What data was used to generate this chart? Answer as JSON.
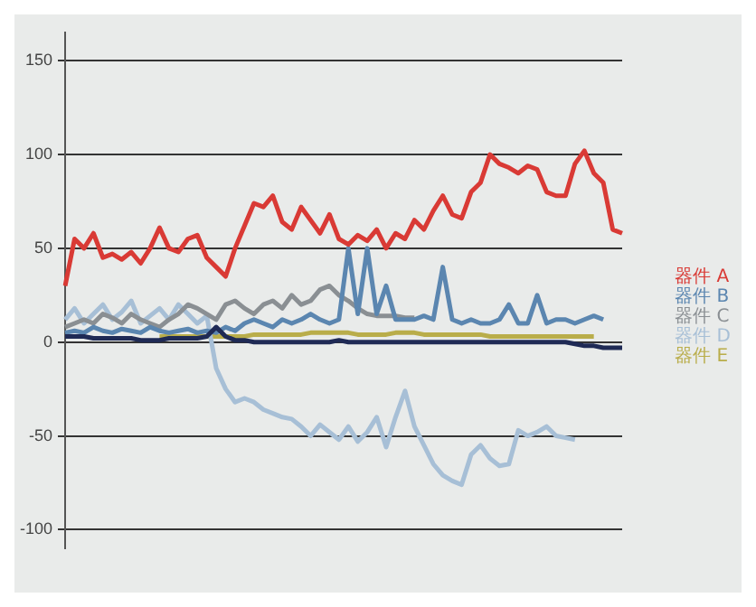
{
  "chart_data": {
    "type": "line",
    "categories": [
      null,
      null,
      null,
      null,
      null,
      null,
      null,
      null,
      null,
      null,
      null,
      null,
      null,
      null,
      null,
      null,
      null,
      null,
      null,
      null,
      null,
      null,
      null,
      null,
      null,
      null,
      null,
      null,
      null,
      null,
      null,
      null,
      null,
      null,
      null,
      null,
      null,
      null,
      null,
      null,
      null,
      null,
      null,
      null,
      null,
      null,
      null,
      null,
      null,
      null,
      null,
      null,
      null,
      null,
      null,
      null,
      null,
      null,
      null,
      null
    ],
    "series": [
      {
        "color": "#1f2a55",
        "values": [
          3,
          3,
          3,
          2,
          2,
          2,
          2,
          2,
          1,
          1,
          1,
          2,
          2,
          2,
          2,
          3,
          8,
          3,
          1,
          1,
          0,
          0,
          0,
          0,
          0,
          0,
          0,
          0,
          0,
          1,
          0,
          0,
          0,
          0,
          0,
          0,
          0,
          0,
          0,
          0,
          0,
          0,
          0,
          0,
          0,
          0,
          0,
          0,
          0,
          0,
          0,
          0,
          0,
          0,
          -1,
          -2,
          -2,
          -3,
          -3,
          -3
        ]
      },
      {
        "name": "器件 A",
        "color": "#d93a35",
        "values": [
          30,
          55,
          50,
          58,
          45,
          47,
          44,
          48,
          42,
          50,
          61,
          50,
          48,
          55,
          57,
          45,
          40,
          35,
          50,
          62,
          74,
          72,
          78,
          64,
          60,
          72,
          65,
          58,
          68,
          55,
          52,
          57,
          54,
          60,
          50,
          58,
          55,
          65,
          60,
          70,
          78,
          68,
          66,
          80,
          85,
          100,
          95,
          93,
          90,
          94,
          92,
          80,
          78,
          78,
          95,
          102,
          90,
          85,
          60,
          58
        ]
      },
      {
        "name": "器件 B",
        "color": "#5b86b0",
        "values": [
          5,
          6,
          5,
          8,
          6,
          5,
          7,
          6,
          5,
          8,
          6,
          5,
          6,
          7,
          5,
          6,
          5,
          8,
          6,
          10,
          12,
          10,
          8,
          12,
          10,
          12,
          15,
          12,
          10,
          12,
          50,
          15,
          50,
          15,
          30,
          12,
          12,
          12,
          14,
          12,
          40,
          12,
          10,
          12,
          10,
          10,
          12,
          20,
          10,
          10,
          25,
          10,
          12,
          12,
          10,
          12,
          14,
          12,
          null,
          null
        ]
      },
      {
        "name": "器件 C",
        "color": "#8a8f93",
        "values": [
          8,
          10,
          12,
          10,
          15,
          13,
          10,
          15,
          12,
          10,
          8,
          12,
          15,
          20,
          18,
          15,
          12,
          20,
          22,
          18,
          15,
          20,
          22,
          18,
          25,
          20,
          22,
          28,
          30,
          25,
          22,
          18,
          15,
          14,
          14,
          14,
          13,
          13,
          null,
          null,
          null,
          null,
          null,
          null,
          null,
          null,
          null,
          null,
          null,
          null,
          null,
          null,
          null,
          null,
          null,
          null,
          null,
          null,
          null,
          null
        ]
      },
      {
        "name": "器件 D",
        "color": "#a7bfd6",
        "values": [
          12,
          18,
          10,
          15,
          20,
          12,
          16,
          22,
          10,
          14,
          18,
          12,
          20,
          15,
          10,
          14,
          -14,
          -25,
          -32,
          -30,
          -32,
          -36,
          -38,
          -40,
          -41,
          -45,
          -50,
          -44,
          -48,
          -52,
          -45,
          -53,
          -48,
          -40,
          -56,
          -40,
          -26,
          -45,
          -55,
          -65,
          -71,
          -74,
          -76,
          -60,
          -55,
          -62,
          -66,
          -65,
          -47,
          -50,
          -48,
          -45,
          -50,
          -51,
          -52,
          null,
          null,
          null,
          null,
          null
        ]
      },
      {
        "name": "器件 E",
        "color": "#b9ad4a",
        "values": [
          null,
          null,
          null,
          null,
          null,
          null,
          null,
          null,
          null,
          null,
          3,
          3,
          3,
          3,
          3,
          3,
          3,
          3,
          3,
          3,
          4,
          4,
          4,
          4,
          4,
          4,
          5,
          5,
          5,
          5,
          5,
          4,
          4,
          4,
          4,
          5,
          5,
          5,
          4,
          4,
          4,
          4,
          4,
          4,
          4,
          3,
          3,
          3,
          3,
          3,
          3,
          3,
          3,
          3,
          3,
          3,
          3,
          null,
          null,
          null
        ]
      }
    ],
    "ylim": [
      -110,
      165
    ],
    "yticks": [
      -100,
      -50,
      0,
      50,
      100,
      150
    ],
    "grid": "y",
    "legend": "right",
    "marker": "none",
    "line_style": "solid"
  }
}
